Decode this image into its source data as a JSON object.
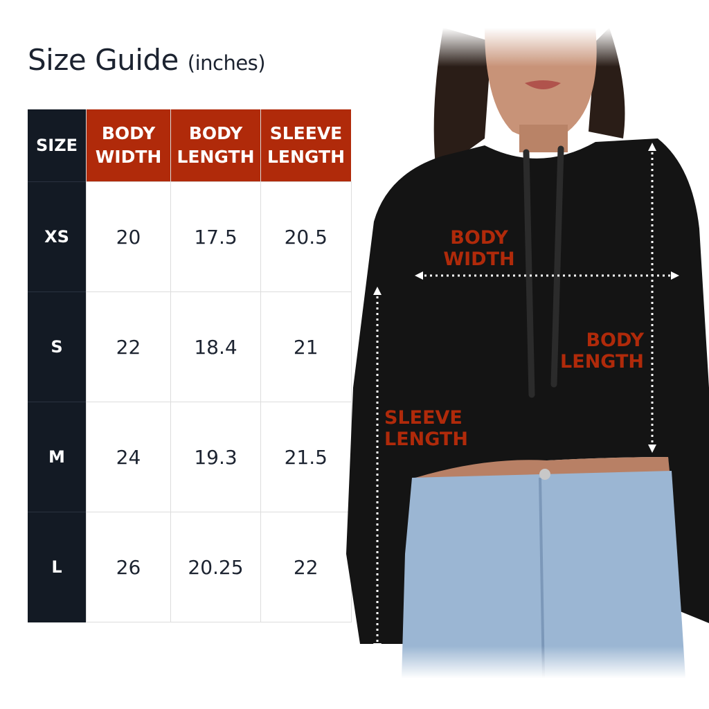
{
  "title": "Size Guide",
  "unit": "(inches)",
  "table": {
    "headers": [
      [
        "SIZE"
      ],
      [
        "BODY",
        "WIDTH"
      ],
      [
        "BODY",
        "LENGTH"
      ],
      [
        "SLEEVE",
        "LENGTH"
      ]
    ],
    "rows": [
      [
        "XS",
        "20",
        "17.5",
        "20.5"
      ],
      [
        "S",
        "22",
        "18.4",
        "21"
      ],
      [
        "M",
        "24",
        "19.3",
        "21.5"
      ],
      [
        "L",
        "26",
        "20.25",
        "22"
      ]
    ]
  },
  "diagram": {
    "body_width": [
      "BODY",
      "WIDTH"
    ],
    "body_length": [
      "BODY",
      "LENGTH"
    ],
    "sleeve_length": [
      "SLEEVE",
      "LENGTH"
    ]
  },
  "colors": {
    "header_red": "#b02a0a",
    "size_column": "#131a24",
    "text": "#1c2330"
  }
}
